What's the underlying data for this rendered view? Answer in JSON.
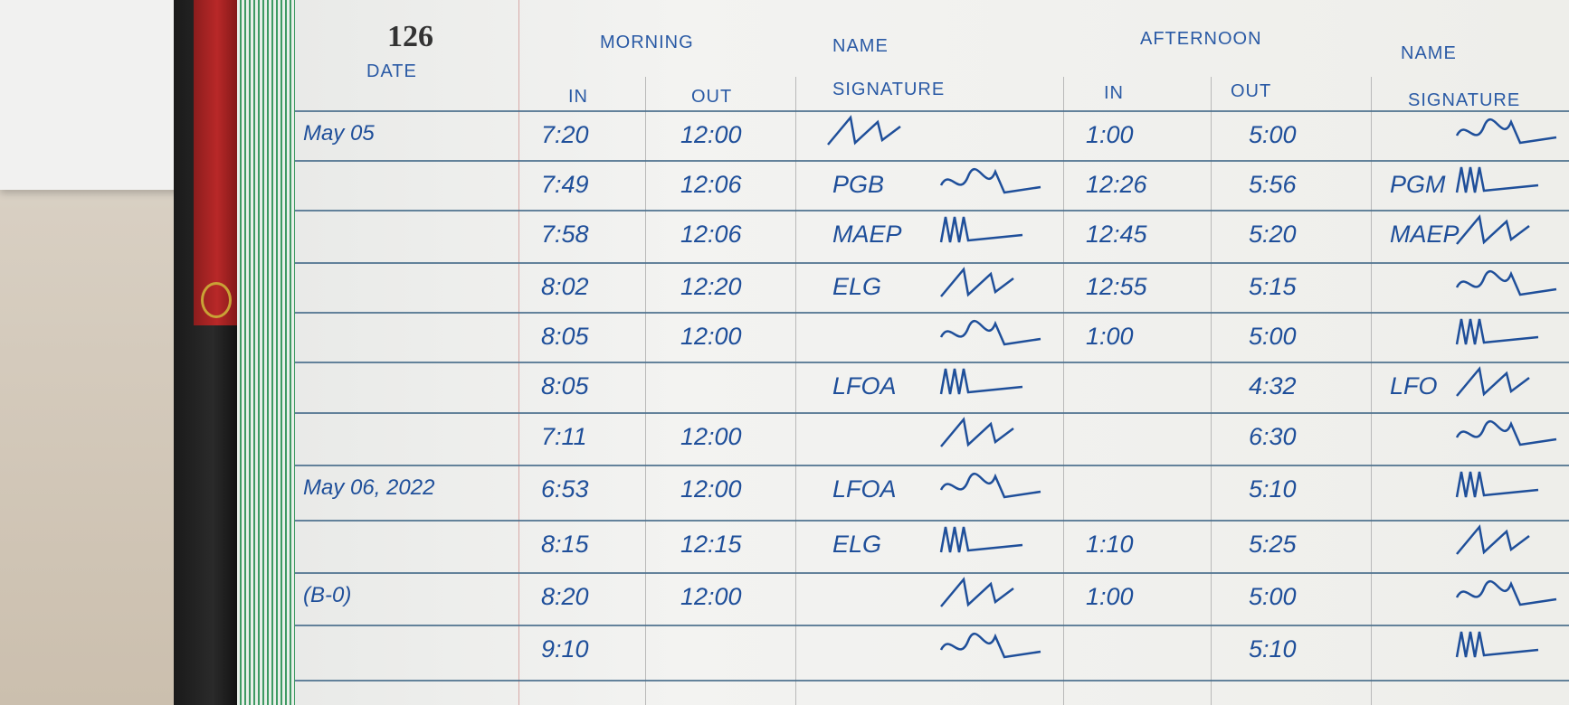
{
  "page_number": "126",
  "headers": {
    "date": "DATE",
    "morning": "MORNING",
    "morning_in": "IN",
    "morning_out": "OUT",
    "name_signature_1_top": "NAME",
    "name_signature_1_bottom": "SIGNATURE",
    "afternoon": "AFTERNOON",
    "afternoon_in": "IN",
    "afternoon_out": "OUT",
    "name_signature_2_top": "NAME",
    "name_signature_2_bottom": "SIGNATURE"
  },
  "rows": [
    {
      "date": "May 05",
      "m_in": "7:20",
      "m_out": "12:00",
      "name": "",
      "a_in": "1:00",
      "a_out": "5:00",
      "a_name": ""
    },
    {
      "date": "",
      "m_in": "7:49",
      "m_out": "12:06",
      "name": "PGB",
      "a_in": "12:26",
      "a_out": "5:56",
      "a_name": "PGM"
    },
    {
      "date": "",
      "m_in": "7:58",
      "m_out": "12:06",
      "name": "MAEP",
      "a_in": "12:45",
      "a_out": "5:20",
      "a_name": "MAEP"
    },
    {
      "date": "",
      "m_in": "8:02",
      "m_out": "12:20",
      "name": "ELG",
      "a_in": "12:55",
      "a_out": "5:15",
      "a_name": ""
    },
    {
      "date": "",
      "m_in": "8:05",
      "m_out": "12:00",
      "name": "",
      "a_in": "1:00",
      "a_out": "5:00",
      "a_name": ""
    },
    {
      "date": "",
      "m_in": "8:05",
      "m_out": "",
      "name": "LFOA",
      "a_in": "",
      "a_out": "4:32",
      "a_name": "LFO"
    },
    {
      "date": "",
      "m_in": "7:11",
      "m_out": "12:00",
      "name": "",
      "a_in": "",
      "a_out": "6:30",
      "a_name": ""
    },
    {
      "date": "May 06, 2022",
      "m_in": "6:53",
      "m_out": "12:00",
      "name": "LFOA",
      "a_in": "",
      "a_out": "5:10",
      "a_name": ""
    },
    {
      "date": "",
      "m_in": "8:15",
      "m_out": "12:15",
      "name": "ELG",
      "a_in": "1:10",
      "a_out": "5:25",
      "a_name": ""
    },
    {
      "date": "(B-0)",
      "m_in": "8:20",
      "m_out": "12:00",
      "name": "",
      "a_in": "1:00",
      "a_out": "5:00",
      "a_name": ""
    },
    {
      "date": "",
      "m_in": "9:10",
      "m_out": "",
      "name": "",
      "a_in": "",
      "a_out": "5:10",
      "a_name": ""
    }
  ],
  "colors": {
    "ink": "#1f4f9a",
    "rule": "#4a6f8c",
    "spine_red": "#b82828",
    "page_edge": "#3f9a63"
  }
}
